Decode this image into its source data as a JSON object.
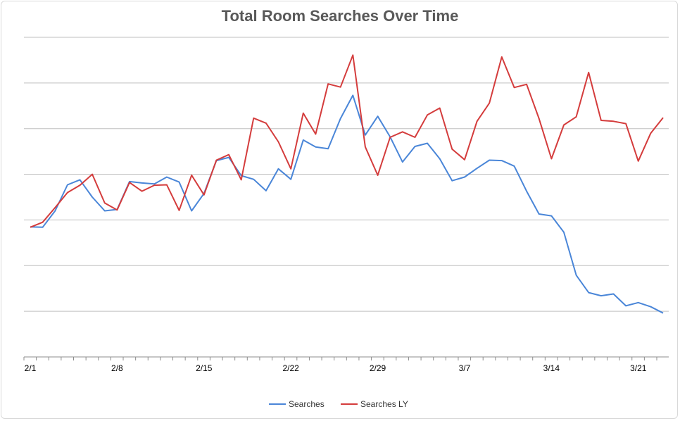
{
  "chart_data": {
    "type": "line",
    "title": "Total Room Searches Over Time",
    "xlabel": "",
    "ylabel": "",
    "ylim": [
      0,
      7
    ],
    "grid": true,
    "legend_position": "bottom",
    "x_tick_labels": [
      "2/1",
      "2/8",
      "2/15",
      "2/22",
      "2/29",
      "3/7",
      "3/14",
      "3/21"
    ],
    "x_tick_positions": [
      1,
      8,
      15,
      22,
      29,
      36,
      43,
      50
    ],
    "x": [
      1,
      2,
      3,
      4,
      5,
      6,
      7,
      8,
      9,
      10,
      11,
      12,
      13,
      14,
      15,
      16,
      17,
      18,
      19,
      20,
      21,
      22,
      23,
      24,
      25,
      26,
      27,
      28,
      29,
      30,
      31,
      32,
      33,
      34,
      35,
      36,
      37,
      38,
      39,
      40,
      41,
      42,
      43,
      44,
      45,
      46,
      47,
      48,
      49,
      50,
      51,
      52
    ],
    "series": [
      {
        "name": "Searches",
        "color": "#4a86d8",
        "values": [
          2.85,
          2.84,
          3.2,
          3.77,
          3.88,
          3.5,
          3.2,
          3.23,
          3.84,
          3.81,
          3.79,
          3.94,
          3.83,
          3.2,
          3.58,
          4.3,
          4.37,
          3.97,
          3.89,
          3.64,
          4.12,
          3.89,
          4.75,
          4.6,
          4.56,
          5.22,
          5.73,
          4.86,
          5.27,
          4.82,
          4.27,
          4.61,
          4.68,
          4.34,
          3.86,
          3.94,
          4.13,
          4.31,
          4.3,
          4.18,
          3.63,
          3.13,
          3.09,
          2.73,
          1.79,
          1.41,
          1.34,
          1.38,
          1.12,
          1.19,
          1.1,
          0.96
        ]
      },
      {
        "name": "Searches LY",
        "color": "#d43c3c",
        "values": [
          2.84,
          2.95,
          3.27,
          3.6,
          3.76,
          4.0,
          3.37,
          3.22,
          3.82,
          3.63,
          3.76,
          3.77,
          3.21,
          3.98,
          3.55,
          4.31,
          4.43,
          3.88,
          5.23,
          5.12,
          4.71,
          4.12,
          5.34,
          4.88,
          5.98,
          5.91,
          6.61,
          4.6,
          3.98,
          4.81,
          4.93,
          4.81,
          5.3,
          5.45,
          4.55,
          4.32,
          5.16,
          5.56,
          6.57,
          5.9,
          5.97,
          5.22,
          4.34,
          5.08,
          5.26,
          6.23,
          5.18,
          5.16,
          5.11,
          4.29,
          4.9,
          5.24
        ]
      }
    ]
  }
}
